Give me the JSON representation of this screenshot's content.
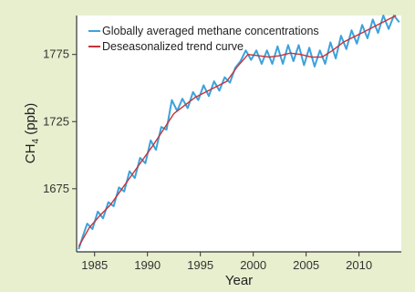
{
  "chart_data": {
    "type": "line",
    "xlabel": "Year",
    "ylabel": "CH4 (ppb)",
    "ylabel_main": "CH",
    "ylabel_sub": "4",
    "ylabel_unit": " (ppb)",
    "xlim": [
      1983.3,
      2014.0
    ],
    "ylim": [
      1628,
      1804
    ],
    "xticks": [
      1985,
      1990,
      1995,
      2000,
      2005,
      2010
    ],
    "yticks": [
      1675,
      1725,
      1775
    ],
    "grid": false,
    "legend_position": "top-left",
    "series": [
      {
        "name": "Globally averaged methane concentrations",
        "color": "#3ba3dc",
        "x": [
          1983.5,
          1983.9,
          1984.3,
          1984.8,
          1985.3,
          1985.8,
          1986.3,
          1986.8,
          1987.3,
          1987.8,
          1988.3,
          1988.8,
          1989.3,
          1989.8,
          1990.3,
          1990.8,
          1991.3,
          1991.8,
          1992.3,
          1992.8,
          1993.3,
          1993.8,
          1994.3,
          1994.8,
          1995.3,
          1995.8,
          1996.3,
          1996.8,
          1997.3,
          1997.8,
          1998.3,
          1998.8,
          1999.3,
          1999.8,
          2000.3,
          2000.8,
          2001.3,
          2001.8,
          2002.3,
          2002.8,
          2003.3,
          2003.8,
          2004.3,
          2004.8,
          2005.3,
          2005.8,
          2006.3,
          2006.8,
          2007.3,
          2007.8,
          2008.3,
          2008.8,
          2009.3,
          2009.8,
          2010.3,
          2010.8,
          2011.3,
          2011.8,
          2012.3,
          2012.8,
          2013.3,
          2013.8
        ],
        "values": [
          1630,
          1640,
          1649,
          1645,
          1658,
          1653,
          1665,
          1662,
          1676,
          1673,
          1688,
          1683,
          1698,
          1694,
          1711,
          1704,
          1721,
          1719,
          1741,
          1733,
          1742,
          1735,
          1747,
          1741,
          1752,
          1744,
          1755,
          1748,
          1758,
          1754,
          1765,
          1770,
          1778,
          1771,
          1778,
          1768,
          1778,
          1768,
          1781,
          1768,
          1782,
          1770,
          1782,
          1767,
          1780,
          1766,
          1778,
          1768,
          1784,
          1772,
          1789,
          1779,
          1793,
          1783,
          1797,
          1787,
          1801,
          1791,
          1806,
          1794,
          1809,
          1799
        ]
      },
      {
        "name": "Deseasonalized trend curve",
        "color": "#c83238",
        "x": [
          1983.5,
          1984.5,
          1985.5,
          1986.5,
          1987.5,
          1988.5,
          1989.5,
          1990.5,
          1991.5,
          1992.5,
          1993.5,
          1994.5,
          1995.5,
          1996.5,
          1997.5,
          1998.5,
          1999.5,
          2000.5,
          2001.5,
          2002.5,
          2003.5,
          2004.5,
          2005.5,
          2006.5,
          2007.5,
          2008.5,
          2009.5,
          2010.5,
          2011.5,
          2012.5,
          2013.5
        ],
        "values": [
          1632,
          1646,
          1655,
          1663,
          1674,
          1685,
          1696,
          1707,
          1719,
          1731,
          1737,
          1743,
          1747,
          1751,
          1755,
          1766,
          1775,
          1774,
          1773,
          1774,
          1776,
          1775,
          1773,
          1773,
          1778,
          1784,
          1788,
          1792,
          1796,
          1800,
          1804
        ]
      }
    ]
  }
}
